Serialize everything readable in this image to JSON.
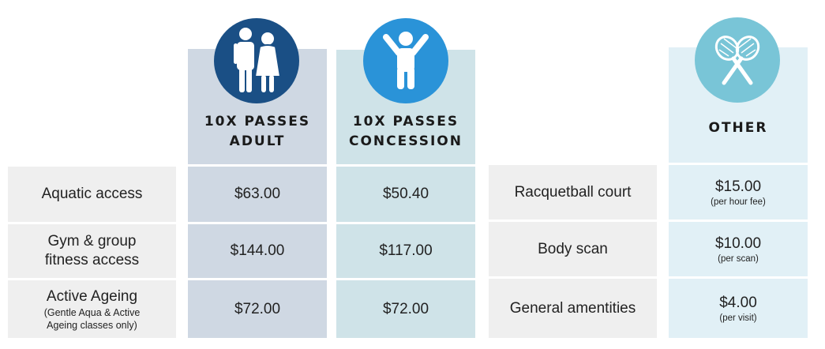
{
  "columns": {
    "adult": {
      "line1": "10X PASSES",
      "line2": "ADULT",
      "icon": "adult-couple-icon",
      "color": "#1a4f85"
    },
    "concession": {
      "line1": "10X PASSES",
      "line2": "CONCESSION",
      "icon": "child-icon",
      "color": "#2a93d8"
    },
    "other": {
      "label": "OTHER",
      "icon": "tennis-rackets-icon",
      "color": "#79c5d7"
    }
  },
  "passes": [
    {
      "label": "Aquatic access",
      "sub": "",
      "adult": "$63.00",
      "concession": "$50.40"
    },
    {
      "label": "Gym & group fitness access",
      "line1": "Gym & group",
      "line2": "fitness access",
      "adult": "$144.00",
      "concession": "$117.00"
    },
    {
      "label": "Active Ageing",
      "sub1": "(Gentle Aqua & Active",
      "sub2": "Ageing classes only)",
      "adult": "$72.00",
      "concession": "$72.00"
    }
  ],
  "other": [
    {
      "label": "Racquetball court",
      "price": "$15.00",
      "unit": "(per hour fee)"
    },
    {
      "label": "Body scan",
      "price": "$10.00",
      "unit": "(per scan)"
    },
    {
      "label": "General amentities",
      "price": "$4.00",
      "unit": "(per visit)"
    }
  ]
}
